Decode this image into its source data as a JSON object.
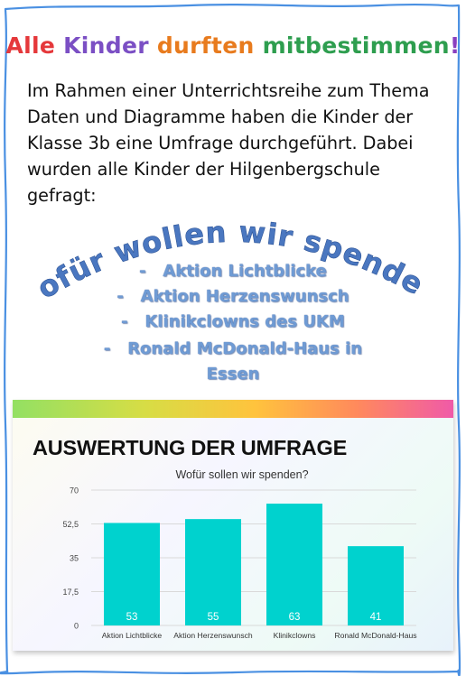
{
  "headline": {
    "words": [
      {
        "text": "Alle",
        "color": "#e5383b"
      },
      {
        "text": "Kinder",
        "color": "#7b4fc4"
      },
      {
        "text": "durften",
        "color": "#e87b1e"
      },
      {
        "text": "mitbestimmen",
        "color": "#2e9e4f"
      },
      {
        "text": "!",
        "color": "#8a3fbf"
      }
    ]
  },
  "intro_lines": [
    "Im Rahmen einer Unterrichtsreihe zum Thema",
    "Daten und Diagramme haben die Kinder der",
    "Klasse 3b eine Umfrage durchgeführt. Dabei",
    "wurden alle Kinder der Hilgenbergschule",
    "gefragt:"
  ],
  "question_arc": "Wofür wollen wir spenden?",
  "options": [
    "-   Aktion Lichtblicke",
    "-   Aktion Herzenswunsch",
    "-   Klinikclowns des UKM",
    "-   Ronald McDonald-Haus in",
    "Essen"
  ],
  "card": {
    "title": "AUSWERTUNG DER UMFRAGE"
  },
  "chart_data": {
    "type": "bar",
    "title": "Wofür sollen wir spenden?",
    "categories": [
      "Aktion Lichtblicke",
      "Aktion Herzenswunsch",
      "Klinikclowns",
      "Ronald McDonald-Haus"
    ],
    "values": [
      53,
      55,
      63,
      41
    ],
    "data_labels": [
      "53",
      "55",
      "63",
      "41"
    ],
    "yticks": [
      0,
      17.5,
      35,
      52.5,
      70
    ],
    "ytick_labels": [
      "0",
      "17,5",
      "35",
      "52,5",
      "70"
    ],
    "ylim": [
      0,
      70
    ],
    "xlabel": "",
    "ylabel": "",
    "bar_color": "#00d2ce",
    "grid": true,
    "legend": "none"
  }
}
